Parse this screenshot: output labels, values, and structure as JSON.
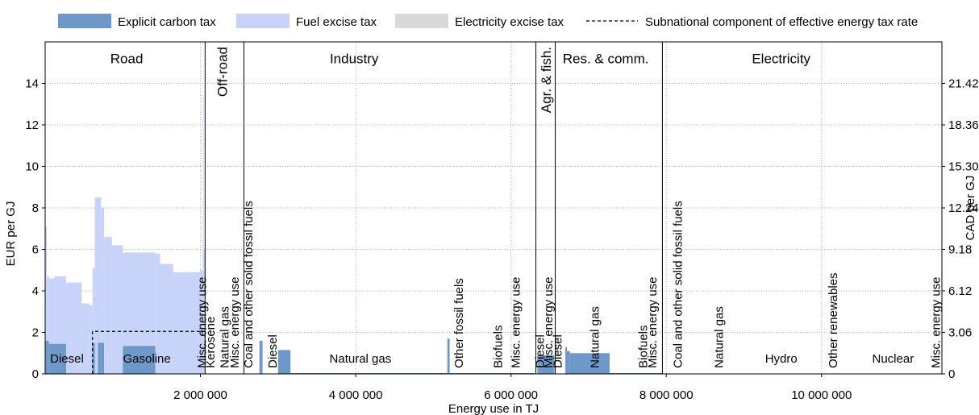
{
  "colors": {
    "explicit_carbon_tax": "#6d98c7",
    "fuel_excise_tax": "#c8d3fa",
    "electricity_excise_tax": "#d9d9d9",
    "axis": "#000000",
    "grid": "#b0b0b0"
  },
  "chart_data": {
    "type": "area",
    "xlabel": "Energy use in TJ",
    "ylabel": "EUR per GJ",
    "ylabel_right": "CAD per GJ",
    "xlim": [
      0,
      11550000
    ],
    "ylim": [
      0,
      16
    ],
    "grid": true,
    "legend_position": "top",
    "x_ticks": [
      2000000,
      4000000,
      6000000,
      8000000,
      10000000
    ],
    "x_tick_labels": [
      "2 000 000",
      "4 000 000",
      "6 000 000",
      "8 000 000",
      "10 000 000"
    ],
    "y_ticks": [
      0,
      2,
      4,
      6,
      8,
      10,
      12,
      14
    ],
    "y_tick_labels": [
      "0",
      "2",
      "4",
      "6",
      "8",
      "10",
      "12",
      "14"
    ],
    "right_tick_labels": [
      "0",
      "3.06",
      "6.12",
      "9.18",
      "12.24",
      "15.30",
      "18.36",
      "21.42"
    ],
    "legend": [
      {
        "key": "explicit_carbon_tax",
        "label": "Explicit carbon tax",
        "style": "box"
      },
      {
        "key": "fuel_excise_tax",
        "label": "Fuel excise tax",
        "style": "box"
      },
      {
        "key": "electricity_excise_tax",
        "label": "Electricity excise tax",
        "style": "box"
      },
      {
        "key": "subnational",
        "label": "Subnational component of effective energy tax rate",
        "style": "dash"
      }
    ],
    "sectors": [
      {
        "name": "Road",
        "label_x": 1050000,
        "label_y": 15.2,
        "end": 2060000
      },
      {
        "name": "Off-road",
        "label_x": 2280000,
        "label_y": 15.2,
        "end": 2560000,
        "vertical": true
      },
      {
        "name": "Industry",
        "label_x": 3980000,
        "label_y": 15.2,
        "end": 6320000
      },
      {
        "name": "Agr. & fish.",
        "label_x": 6450000,
        "label_y": 15.2,
        "end": 6570000,
        "vertical": true
      },
      {
        "name": "Res. & comm.",
        "label_x": 7220000,
        "label_y": 15.2,
        "end": 7950000
      },
      {
        "name": "Electricity",
        "label_x": 9480000,
        "label_y": 15.2
      }
    ],
    "fuel_labels": [
      {
        "text": "Diesel",
        "x": 280000,
        "y": 0.55
      },
      {
        "text": "Gasoline",
        "x": 1310000,
        "y": 0.55
      },
      {
        "text": "Misc. energy use",
        "x": 2020000,
        "y": 0.2,
        "vertical": true
      },
      {
        "text": "Kerosene",
        "x": 2130000,
        "y": 0.2,
        "vertical": true
      },
      {
        "text": "Natural gas",
        "x": 2310000,
        "y": 0.2,
        "vertical": true
      },
      {
        "text": "Misc. energy use",
        "x": 2440000,
        "y": 0.2,
        "vertical": true
      },
      {
        "text": "Coal and other solid fossil fuels",
        "x": 2620000,
        "y": 0.2,
        "vertical": true
      },
      {
        "text": "Diesel",
        "x": 2930000,
        "y": 0.2,
        "vertical": true
      },
      {
        "text": "Natural gas",
        "x": 4060000,
        "y": 0.55
      },
      {
        "text": "Other fossil fuels",
        "x": 5330000,
        "y": 0.2,
        "vertical": true
      },
      {
        "text": "Biofuels",
        "x": 5830000,
        "y": 0.2,
        "vertical": true
      },
      {
        "text": "Misc. energy use",
        "x": 6060000,
        "y": 0.2,
        "vertical": true
      },
      {
        "text": "Diesel",
        "x": 6370000,
        "y": 0.2,
        "vertical": true
      },
      {
        "text": "Misc. energy use",
        "x": 6480000,
        "y": 0.2,
        "vertical": true
      },
      {
        "text": "Diesel",
        "x": 6600000,
        "y": 0.2,
        "vertical": true
      },
      {
        "text": "Natural gas",
        "x": 7080000,
        "y": 0.2,
        "vertical": true
      },
      {
        "text": "Biofuels",
        "x": 7700000,
        "y": 0.2,
        "vertical": true
      },
      {
        "text": "Misc. energy use",
        "x": 7820000,
        "y": 0.2,
        "vertical": true
      },
      {
        "text": "Coal and other solid fossil fuels",
        "x": 8150000,
        "y": 0.2,
        "vertical": true
      },
      {
        "text": "Natural gas",
        "x": 8680000,
        "y": 0.2,
        "vertical": true
      },
      {
        "text": "Hydro",
        "x": 9480000,
        "y": 0.55
      },
      {
        "text": "Other renewables",
        "x": 10150000,
        "y": 0.2,
        "vertical": true
      },
      {
        "text": "Nuclear",
        "x": 10920000,
        "y": 0.55
      },
      {
        "text": "Misc. energy use",
        "x": 11470000,
        "y": 0.2,
        "vertical": true
      }
    ],
    "segments": [
      {
        "x0": 0,
        "x1": 20000,
        "carbon": 1.6,
        "fuel": 7.1
      },
      {
        "x0": 20000,
        "x1": 50000,
        "carbon": 1.6,
        "fuel": 4.7
      },
      {
        "x0": 50000,
        "x1": 120000,
        "carbon": 1.45,
        "fuel": 4.6
      },
      {
        "x0": 120000,
        "x1": 270000,
        "carbon": 1.45,
        "fuel": 4.7
      },
      {
        "x0": 270000,
        "x1": 470000,
        "carbon": 0,
        "fuel": 4.4
      },
      {
        "x0": 470000,
        "x1": 570000,
        "carbon": 0,
        "fuel": 3.4
      },
      {
        "x0": 570000,
        "x1": 610000,
        "carbon": 0,
        "fuel": 3.3
      },
      {
        "x0": 610000,
        "x1": 640000,
        "carbon": 1.5,
        "fuel": 5.1
      },
      {
        "x0": 640000,
        "x1": 680000,
        "carbon": 0,
        "fuel": 8.5
      },
      {
        "x0": 680000,
        "x1": 720000,
        "carbon": 1.5,
        "fuel": 8.5
      },
      {
        "x0": 720000,
        "x1": 760000,
        "carbon": 1.5,
        "fuel": 8.0
      },
      {
        "x0": 760000,
        "x1": 860000,
        "carbon": 0,
        "fuel": 6.6
      },
      {
        "x0": 860000,
        "x1": 1000000,
        "carbon": 0,
        "fuel": 6.2
      },
      {
        "x0": 1000000,
        "x1": 1420000,
        "carbon": 1.35,
        "fuel": 5.85
      },
      {
        "x0": 1420000,
        "x1": 1480000,
        "carbon": 0,
        "fuel": 5.8
      },
      {
        "x0": 1480000,
        "x1": 1650000,
        "carbon": 0,
        "fuel": 5.3
      },
      {
        "x0": 1650000,
        "x1": 1990000,
        "carbon": 0,
        "fuel": 4.9
      },
      {
        "x0": 1990000,
        "x1": 2030000,
        "carbon": 0,
        "fuel": 5.0
      },
      {
        "x0": 2030000,
        "x1": 2040000,
        "carbon": 0,
        "fuel": 13.5
      },
      {
        "x0": 2040000,
        "x1": 2060000,
        "carbon": 0,
        "fuel": 6.0
      },
      {
        "x0": 2760000,
        "x1": 2800000,
        "carbon": 1.6,
        "fuel": 1.6
      },
      {
        "x0": 3000000,
        "x1": 3160000,
        "carbon": 1.15,
        "fuel": 1.15
      },
      {
        "x0": 3160000,
        "x1": 5180000,
        "carbon": 0.04,
        "fuel": 0.04
      },
      {
        "x0": 5180000,
        "x1": 5210000,
        "carbon": 1.7,
        "fuel": 1.7
      },
      {
        "x0": 5210000,
        "x1": 6300000,
        "carbon": 0.04,
        "fuel": 0.04
      },
      {
        "x0": 6340000,
        "x1": 6560000,
        "carbon": 0.9,
        "fuel": 0.9
      },
      {
        "x0": 6700000,
        "x1": 6720000,
        "carbon": 1.3,
        "fuel": 1.3
      },
      {
        "x0": 6720000,
        "x1": 6760000,
        "carbon": 1.1,
        "fuel": 1.1
      },
      {
        "x0": 6760000,
        "x1": 7270000,
        "carbon": 1.0,
        "fuel": 1.0
      },
      {
        "x0": 7270000,
        "x1": 7950000,
        "carbon": 0.04,
        "fuel": 0.04
      }
    ],
    "subnational_line": [
      [
        610000,
        0
      ],
      [
        610000,
        2.05
      ],
      [
        2060000,
        2.05
      ],
      [
        2060000,
        1.2
      ]
    ]
  }
}
